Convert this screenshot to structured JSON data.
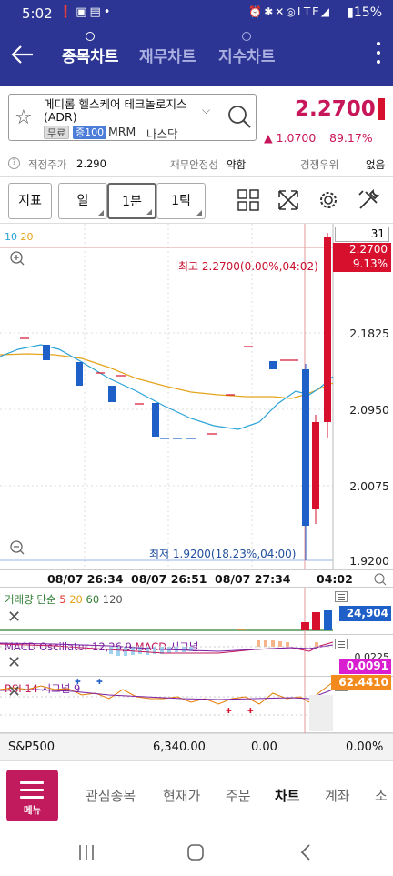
{
  "status_bar": {
    "time": "5:02",
    "left_icons": [
      "alert-icon",
      "image-icon",
      "chat-icon",
      "dot-icon"
    ],
    "right_icons": [
      "alarm-icon",
      "bluetooth-icon",
      "mute-icon",
      "wifi-icon",
      "lte-icon",
      "signal-icon"
    ],
    "battery": "15%"
  },
  "header": {
    "tabs": [
      {
        "label": "종목차트",
        "active": true
      },
      {
        "label": "재무차트",
        "active": false
      },
      {
        "label": "지수차트",
        "active": false
      }
    ]
  },
  "stock": {
    "name": "메디롬 헬스케어 테크놀로지스(ADR)",
    "tags": {
      "free": "무료",
      "margin": "증100"
    },
    "ticker": "MRM",
    "exchange": "나스닥",
    "price": "2.2700",
    "change": "▲ 1.0700",
    "change_pct": "89.17%"
  },
  "info_row": {
    "fair_price_label": "적정주가",
    "fair_price_value": "2.290",
    "financial_label": "재무안정성",
    "financial_value": "약함",
    "competition_label": "경쟁우위",
    "competition_value": "없음"
  },
  "toolbar": {
    "indicator_label": "지표",
    "period_label": "일",
    "interval_label": "1분",
    "tick_label": "1틱",
    "icons": [
      "grid-layout-icon",
      "fullscreen-icon",
      "settings-gear-icon",
      "tools-icon"
    ]
  },
  "main_chart": {
    "ma_labels": [
      "10",
      "20"
    ],
    "count_label": "31",
    "y_ticks": [
      "2.1825",
      "2.0950",
      "2.0075",
      "1.9200"
    ],
    "current_price_box": "2.2700",
    "current_pct_box": "9.13%",
    "max_label": "최고 2.2700(0.00%,04:02)",
    "min_label": "최저 1.9200(18.23%,04:00)"
  },
  "x_axis": [
    "08/07 26:34",
    "08/07 26:51",
    "08/07 27:34",
    "04:02"
  ],
  "volume_panel": {
    "title_prefix": "거래량 단순",
    "ma": [
      "5",
      "20",
      "60",
      "120"
    ],
    "value": "24,904"
  },
  "macd_panel": {
    "title_a": "MACD Oscillator 12,26,9",
    "title_b": "MACD",
    "title_c": "시그널",
    "top_tick": "0.0225",
    "value": "0.0091"
  },
  "rsi_panel": {
    "title_a": "RSI 14",
    "title_b": "시그널 9",
    "value": "62.4410"
  },
  "index_bar": {
    "name": "S&P500",
    "value": "6,340.00",
    "change": "0.00",
    "change_pct": "0.00%"
  },
  "bottom_nav": {
    "menu_label": "메뉴",
    "items": [
      {
        "label": "관심종목",
        "active": false
      },
      {
        "label": "현재가",
        "active": false
      },
      {
        "label": "주문",
        "active": false
      },
      {
        "label": "차트",
        "active": true
      },
      {
        "label": "계좌",
        "active": false
      },
      {
        "label": "소",
        "active": false
      }
    ]
  },
  "colors": {
    "header_bg": "#2d3594",
    "up": "#d7102e",
    "down": "#1f5fc8",
    "accent": "#c21b5d"
  }
}
